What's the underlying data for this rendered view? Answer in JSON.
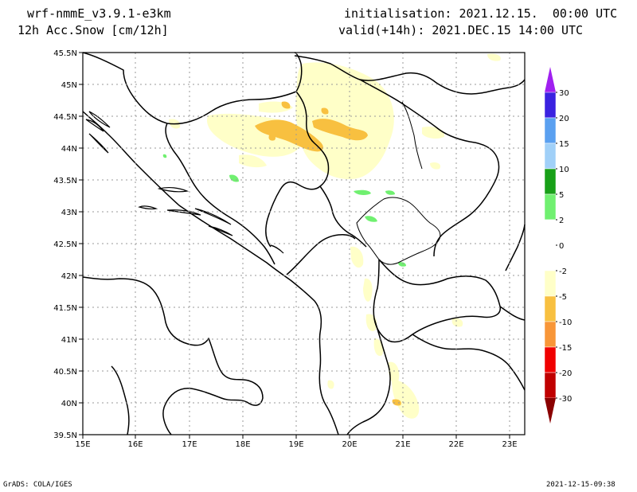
{
  "header": {
    "model": "wrf-nmmE_v3.9.1-e3km",
    "variable": "12h Acc.Snow [cm/12h]",
    "init": "initialisation: 2021.12.15.  00:00 UTC",
    "valid": "valid(+14h): 2021.DEC.15 14:00 UTC"
  },
  "footer": {
    "left": "GrADS: COLA/IGES",
    "right": "2021-12-15-09:38"
  },
  "axes": {
    "lon": [
      "15E",
      "16E",
      "17E",
      "18E",
      "19E",
      "20E",
      "21E",
      "22E",
      "23E"
    ],
    "lat": [
      "45.5N",
      "45N",
      "44.5N",
      "44N",
      "43.5N",
      "43N",
      "42.5N",
      "42N",
      "41.5N",
      "41N",
      "40.5N",
      "40N",
      "39.5N"
    ]
  },
  "colorbar": {
    "labels": [
      "30",
      "20",
      "15",
      "10",
      "5",
      "2",
      "0",
      "-2",
      "-5",
      "-10",
      "-15",
      "-20",
      "-30"
    ],
    "colors": [
      "#3a22e0",
      "#5aa0f0",
      "#a0d0f8",
      "#18a018",
      "#70f070",
      "#ffffff",
      "#ffffff",
      "#ffffc8",
      "#f8c040",
      "#f89638",
      "#f00000",
      "#c00000",
      "#8a0000"
    ],
    "top_arrow_color": "#a020f0",
    "bottom_arrow_color": "#8a0000"
  }
}
